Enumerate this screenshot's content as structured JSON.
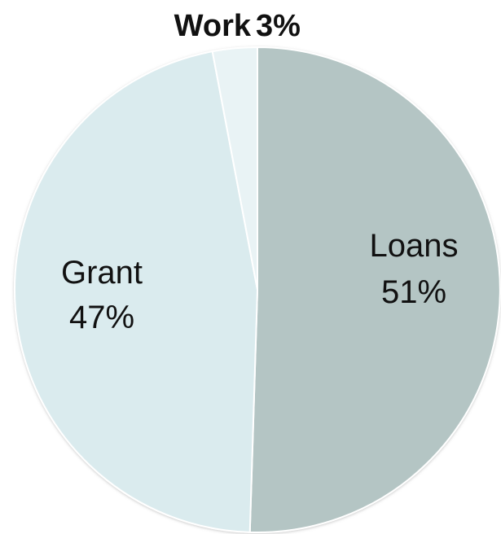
{
  "chart_data": {
    "type": "pie",
    "slices": [
      {
        "name": "Loans",
        "value": 51,
        "label": "51%",
        "color": "#b4c5c4"
      },
      {
        "name": "Grant",
        "value": 47,
        "label": "47%",
        "color": "#daebee"
      },
      {
        "name": "Work",
        "value": 3,
        "label": "3%",
        "color": "#e9f3f5"
      }
    ],
    "start": "12 o'clock",
    "direction": "clockwise"
  }
}
